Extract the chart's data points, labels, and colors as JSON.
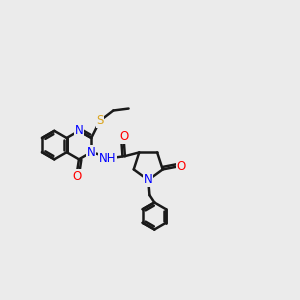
{
  "bg_color": "#ebebeb",
  "bond_color": "#1a1a1a",
  "bond_width": 1.8,
  "atom_colors": {
    "N": "#0000FF",
    "O": "#FF0000",
    "S": "#DAA520",
    "C": "#1a1a1a"
  },
  "font_size": 8.5,
  "fig_size": [
    3.0,
    3.0
  ],
  "dpi": 100,
  "xlim": [
    0,
    12
  ],
  "ylim": [
    0,
    12
  ]
}
